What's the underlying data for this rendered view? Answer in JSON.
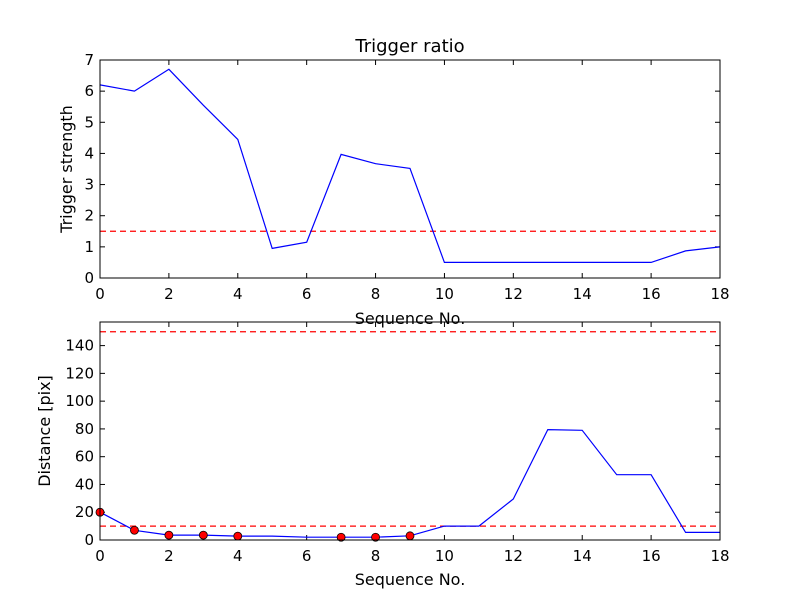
{
  "chart_data": [
    {
      "type": "line",
      "title": "Trigger ratio",
      "xlabel": "Sequence No.",
      "ylabel": "Trigger strength",
      "xlim": [
        0,
        18
      ],
      "ylim": [
        0,
        7
      ],
      "xticks": [
        0,
        2,
        4,
        6,
        8,
        10,
        12,
        14,
        16,
        18
      ],
      "yticks": [
        0,
        1,
        2,
        3,
        4,
        5,
        6,
        7
      ],
      "grid": false,
      "colors": {
        "line": "#0000ff",
        "threshold": "#ff0000"
      },
      "x": [
        0,
        1,
        2,
        3,
        4,
        5,
        6,
        7,
        8,
        9,
        10,
        11,
        12,
        13,
        14,
        15,
        16,
        17,
        18
      ],
      "series": [
        {
          "values": [
            6.2,
            6.0,
            6.7,
            5.55,
            4.45,
            0.95,
            1.15,
            3.97,
            3.67,
            3.52,
            0.5,
            0.5,
            0.5,
            0.5,
            0.5,
            0.5,
            0.5,
            0.87,
            1.0
          ]
        }
      ],
      "hlines": [
        {
          "y": 1.5,
          "style": "dashed",
          "color": "#ff0000"
        }
      ]
    },
    {
      "type": "line",
      "title": "",
      "xlabel": "Sequence No.",
      "ylabel": "Distance [pix]",
      "xlim": [
        0,
        18
      ],
      "ylim": [
        0,
        157
      ],
      "xticks": [
        0,
        2,
        4,
        6,
        8,
        10,
        12,
        14,
        16,
        18
      ],
      "yticks": [
        0,
        20,
        40,
        60,
        80,
        100,
        120,
        140
      ],
      "grid": false,
      "colors": {
        "line": "#0000ff",
        "marker": "#ff0000",
        "threshold": "#ff0000"
      },
      "x": [
        0,
        1,
        2,
        3,
        4,
        5,
        6,
        7,
        8,
        9,
        10,
        11,
        12,
        13,
        14,
        15,
        16,
        17,
        18
      ],
      "series": [
        {
          "values": [
            20,
            7,
            3.5,
            3.5,
            2.8,
            2.8,
            2,
            2,
            2,
            3,
            10,
            10,
            29.5,
            79.5,
            79,
            47,
            47,
            5.5,
            5.5
          ]
        }
      ],
      "markers": {
        "x": [
          0,
          1,
          2,
          3,
          4,
          7,
          8,
          9
        ],
        "y": [
          20,
          7,
          3.5,
          3.5,
          2.8,
          2,
          2,
          3
        ]
      },
      "hlines": [
        {
          "y": 150,
          "style": "dashed",
          "color": "#ff0000"
        },
        {
          "y": 10,
          "style": "dashed",
          "color": "#ff0000"
        }
      ]
    }
  ]
}
